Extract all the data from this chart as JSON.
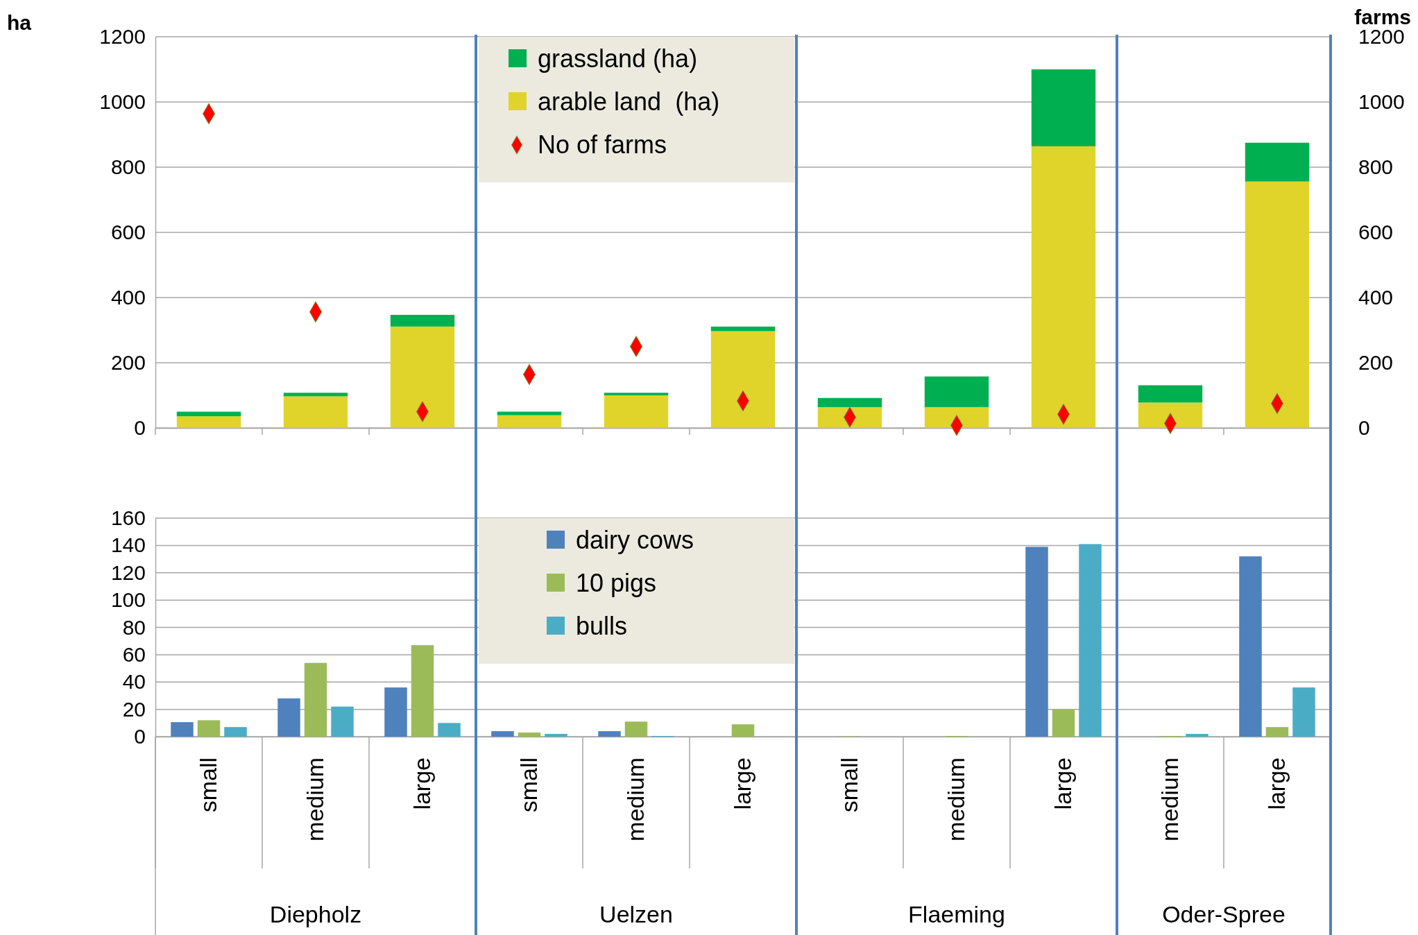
{
  "chart_data": [
    {
      "type": "bar",
      "stacked": true,
      "categories": [
        null,
        null,
        null,
        null,
        null,
        null,
        null,
        null,
        null,
        null,
        null
      ],
      "series": [
        {
          "name": "arable land  (ha)",
          "color": "#e0d42a",
          "values": [
            36,
            97,
            311,
            39,
            100,
            297,
            64,
            64,
            864,
            78,
            756
          ]
        },
        {
          "name": "grassland (ha)",
          "color": "#00b050",
          "values": [
            14,
            11,
            36,
            11,
            8,
            14,
            28,
            94,
            236,
            53,
            119
          ]
        },
        {
          "name": "No of farms",
          "type": "scatter",
          "axis": "y2",
          "marker": "diamond",
          "color": "#ff0000",
          "values": [
            964,
            356,
            50,
            164,
            250,
            83,
            33,
            8,
            42,
            14,
            75
          ]
        }
      ],
      "ylabel": "ha",
      "y2label": "farms",
      "ylim": [
        0,
        1200
      ],
      "yticks": [
        0,
        200,
        400,
        600,
        800,
        1000,
        1200
      ],
      "y2lim": [
        0,
        1200
      ],
      "y2ticks": [
        0,
        200,
        400,
        600,
        800,
        1000,
        1200
      ],
      "grid": "y",
      "legend": "top"
    },
    {
      "type": "bar",
      "categories": [
        "small",
        "medium",
        "large",
        "small",
        "medium",
        "large",
        "small",
        "medium",
        "large",
        "medium",
        "large"
      ],
      "series": [
        {
          "name": "dairy cows",
          "color": "#4f81bd",
          "values": [
            10.6,
            28,
            36,
            4,
            4,
            0,
            0,
            0,
            139,
            0,
            132
          ]
        },
        {
          "name": "10 pigs",
          "color": "#9bbb59",
          "values": [
            12,
            54,
            67,
            3,
            11,
            9,
            0.3,
            0.5,
            20,
            0.5,
            7
          ]
        },
        {
          "name": "bulls",
          "color": "#4bacc6",
          "values": [
            7,
            22,
            10,
            2,
            0.5,
            0,
            0,
            0,
            141,
            2,
            36
          ]
        }
      ],
      "ylim": [
        0,
        160
      ],
      "yticks": [
        0,
        20,
        40,
        60,
        80,
        100,
        120,
        140,
        160
      ],
      "grid": "y",
      "legend": "top",
      "annotations": [
        "Diepholz",
        "Uelzen",
        "Flaeming",
        "Oder-Spree"
      ]
    }
  ]
}
